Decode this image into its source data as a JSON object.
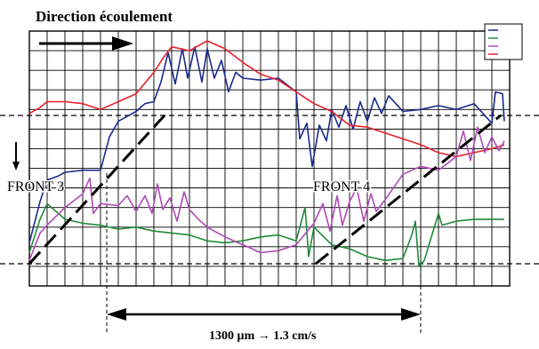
{
  "chart_data": {
    "type": "line",
    "title": "Direction écoulement",
    "xlabel": "",
    "ylabel": "",
    "grid": true,
    "legend_position": "top-right",
    "xlim": [
      0,
      27
    ],
    "ylim": [
      0,
      13
    ],
    "x_ticks": [],
    "y_ticks": [],
    "series": [
      {
        "name": "",
        "color": "#1a2a8c",
        "points": [
          [
            0,
            2.2
          ],
          [
            0.6,
            4.3
          ],
          [
            1,
            5.4
          ],
          [
            1.6,
            5.6
          ],
          [
            2,
            5.8
          ],
          [
            3,
            5.9
          ],
          [
            4,
            5.9
          ],
          [
            4.5,
            7.6
          ],
          [
            5,
            8.4
          ],
          [
            6,
            8.9
          ],
          [
            6.5,
            9.3
          ],
          [
            7,
            9.4
          ],
          [
            7.4,
            10.4
          ],
          [
            7.8,
            11.9
          ],
          [
            8.2,
            10.3
          ],
          [
            8.6,
            12.1
          ],
          [
            8.9,
            10.6
          ],
          [
            9.3,
            12.2
          ],
          [
            9.7,
            10.4
          ],
          [
            10,
            12.1
          ],
          [
            10.4,
            10.6
          ],
          [
            10.8,
            11.5
          ],
          [
            11.2,
            9.9
          ],
          [
            11.6,
            10.9
          ],
          [
            12,
            10.6
          ],
          [
            13,
            10.5
          ],
          [
            14,
            10.6
          ],
          [
            15,
            9.9
          ],
          [
            15.2,
            7.5
          ],
          [
            15.6,
            8.3
          ],
          [
            15.9,
            6.1
          ],
          [
            16.3,
            8.2
          ],
          [
            16.7,
            7.4
          ],
          [
            17,
            9.0
          ],
          [
            17.4,
            8.1
          ],
          [
            17.8,
            9.2
          ],
          [
            18.2,
            8.0
          ],
          [
            18.6,
            9.4
          ],
          [
            19,
            8.4
          ],
          [
            19.4,
            9.6
          ],
          [
            19.8,
            8.8
          ],
          [
            20.2,
            9.7
          ],
          [
            20.6,
            9.3
          ],
          [
            21,
            8.9
          ],
          [
            22,
            9.0
          ],
          [
            23,
            9.2
          ],
          [
            24,
            9.0
          ],
          [
            25,
            9.3
          ],
          [
            26,
            8.3
          ],
          [
            26.2,
            9.9
          ],
          [
            26.6,
            9.8
          ],
          [
            26.7,
            8.4
          ]
        ]
      },
      {
        "name": "",
        "color": "#e8202a",
        "points": [
          [
            0,
            8.8
          ],
          [
            0.6,
            9.1
          ],
          [
            1,
            9.4
          ],
          [
            2,
            9.4
          ],
          [
            3,
            9.3
          ],
          [
            4,
            9.0
          ],
          [
            5,
            9.4
          ],
          [
            6,
            9.8
          ],
          [
            7,
            10.9
          ],
          [
            7.5,
            11.6
          ],
          [
            8,
            12.2
          ],
          [
            9,
            12.0
          ],
          [
            10,
            12.5
          ],
          [
            11,
            12.1
          ],
          [
            12,
            11.4
          ],
          [
            13,
            10.8
          ],
          [
            14,
            10.5
          ],
          [
            15,
            9.9
          ],
          [
            16,
            9.3
          ],
          [
            17,
            8.9
          ],
          [
            18,
            8.2
          ],
          [
            19,
            8.1
          ],
          [
            20,
            7.8
          ],
          [
            21,
            7.5
          ],
          [
            22,
            7.2
          ],
          [
            23,
            6.8
          ],
          [
            24,
            6.6
          ],
          [
            25,
            6.8
          ],
          [
            26,
            7.0
          ],
          [
            26.7,
            7.2
          ]
        ]
      },
      {
        "name": "",
        "color": "#1f8a3a",
        "points": [
          [
            0,
            1.7
          ],
          [
            0.6,
            3.4
          ],
          [
            1,
            4.2
          ],
          [
            2,
            3.4
          ],
          [
            3,
            3.2
          ],
          [
            4,
            3.1
          ],
          [
            5,
            2.9
          ],
          [
            6,
            3.0
          ],
          [
            7,
            2.8
          ],
          [
            8,
            2.7
          ],
          [
            9,
            2.6
          ],
          [
            10,
            2.3
          ],
          [
            11,
            2.2
          ],
          [
            12,
            2.3
          ],
          [
            13,
            2.5
          ],
          [
            14,
            2.6
          ],
          [
            15,
            2.3
          ],
          [
            15.5,
            4.0
          ],
          [
            15.7,
            1.5
          ],
          [
            16,
            3.0
          ],
          [
            17,
            2.1
          ],
          [
            18,
            1.9
          ],
          [
            19,
            1.5
          ],
          [
            20,
            1.3
          ],
          [
            21,
            1.4
          ],
          [
            21.5,
            2.6
          ],
          [
            21.7,
            3.3
          ],
          [
            21.9,
            1.0
          ],
          [
            22.2,
            1.3
          ],
          [
            23,
            3.7
          ],
          [
            23.2,
            3.1
          ],
          [
            24,
            3.3
          ],
          [
            25,
            3.4
          ],
          [
            26,
            3.4
          ],
          [
            26.7,
            3.4
          ]
        ]
      },
      {
        "name": "",
        "color": "#b04ab8",
        "points": [
          [
            0,
            1.3
          ],
          [
            0.6,
            2.7
          ],
          [
            1,
            3.1
          ],
          [
            2,
            4.0
          ],
          [
            3,
            4.7
          ],
          [
            3.4,
            5.5
          ],
          [
            3.6,
            3.7
          ],
          [
            4,
            4.2
          ],
          [
            5,
            4.1
          ],
          [
            5.5,
            4.6
          ],
          [
            6,
            3.8
          ],
          [
            6.5,
            4.6
          ],
          [
            6.9,
            3.7
          ],
          [
            7.2,
            5.2
          ],
          [
            7.5,
            3.9
          ],
          [
            7.9,
            4.5
          ],
          [
            8.3,
            3.3
          ],
          [
            8.7,
            4.8
          ],
          [
            9,
            3.9
          ],
          [
            9.5,
            3.4
          ],
          [
            10,
            3.0
          ],
          [
            11,
            2.5
          ],
          [
            12,
            2.1
          ],
          [
            13,
            1.7
          ],
          [
            14,
            1.8
          ],
          [
            15,
            2.1
          ],
          [
            16,
            3.2
          ],
          [
            16.5,
            4.2
          ],
          [
            16.9,
            2.8
          ],
          [
            17.3,
            4.6
          ],
          [
            17.6,
            3.1
          ],
          [
            18,
            4.3
          ],
          [
            18.4,
            5.0
          ],
          [
            18.8,
            3.3
          ],
          [
            19.2,
            4.7
          ],
          [
            19.5,
            3.8
          ],
          [
            20,
            4.4
          ],
          [
            21,
            5.7
          ],
          [
            22,
            6.1
          ],
          [
            23,
            5.9
          ],
          [
            24,
            6.6
          ],
          [
            24.4,
            7.9
          ],
          [
            24.8,
            6.4
          ],
          [
            25.2,
            8.1
          ],
          [
            25.6,
            6.8
          ],
          [
            26,
            7.6
          ],
          [
            26.4,
            6.9
          ],
          [
            26.7,
            7.4
          ]
        ]
      }
    ],
    "annotations": {
      "front_left": "FRONT 3",
      "front_right": "FRONT 4",
      "distance_label": "1300 µm → 1.3 cm/s"
    }
  }
}
